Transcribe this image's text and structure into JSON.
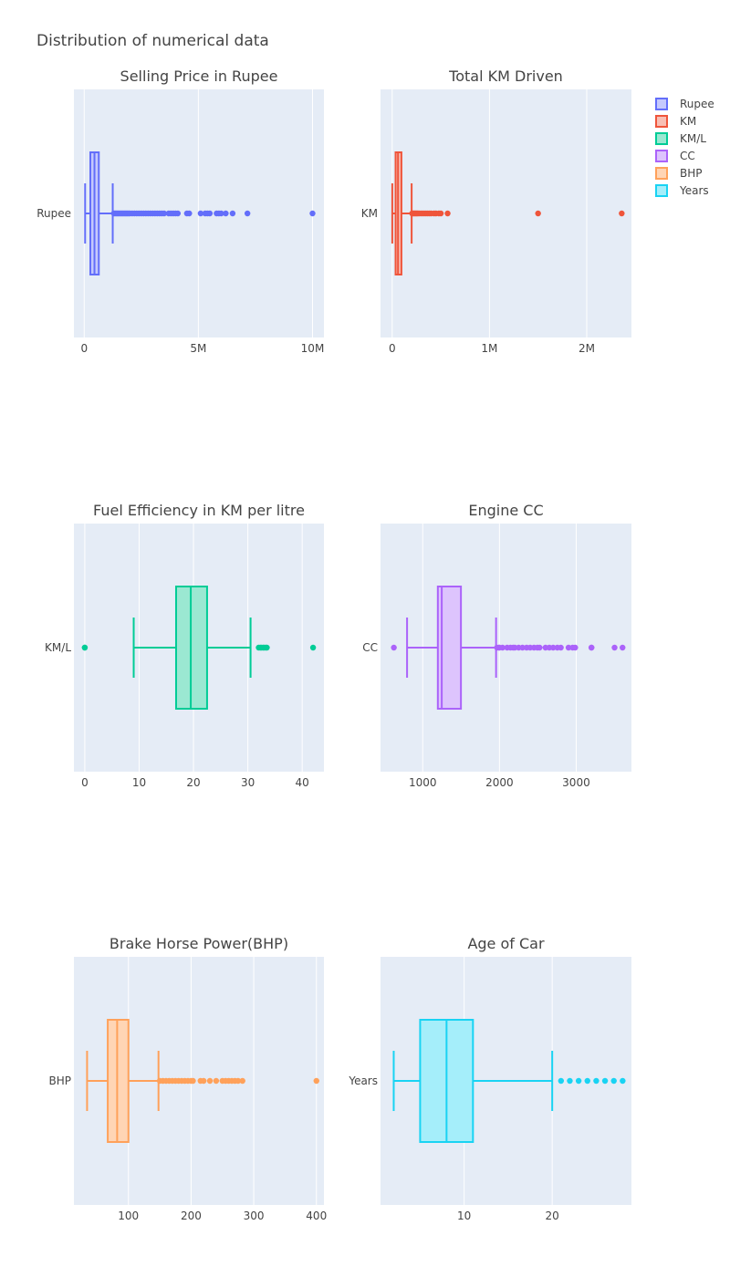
{
  "title": "Distribution of numerical data",
  "legend": [
    {
      "name": "Rupee",
      "color": "#636efa",
      "fill": "#c5c9fd"
    },
    {
      "name": "KM",
      "color": "#ef553b",
      "fill": "#f8bfb4"
    },
    {
      "name": "KM/L",
      "color": "#00cc96",
      "fill": "#9be8d2"
    },
    {
      "name": "CC",
      "color": "#ab63fa",
      "fill": "#ddc4fd"
    },
    {
      "name": "BHP",
      "color": "#ffa15a",
      "fill": "#ffd5b5"
    },
    {
      "name": "Years",
      "color": "#19d3f3",
      "fill": "#a5eefa"
    }
  ],
  "chart_data": [
    {
      "type": "box",
      "title": "Selling Price in Rupee",
      "category": "Rupee",
      "xrange": [
        -450000,
        10500000
      ],
      "ticks": [
        {
          "v": 0,
          "label": "0"
        },
        {
          "v": 5000000,
          "label": "5M"
        },
        {
          "v": 10000000,
          "label": "10M"
        }
      ],
      "color": "#636efa",
      "fill": "#c5c9fd",
      "box": {
        "min": 40000,
        "q1": 270000,
        "median": 450000,
        "q3": 640000,
        "upper_fence": 1250000
      },
      "outliers": [
        1300000,
        1350000,
        1400000,
        1450000,
        1500000,
        1550000,
        1600000,
        1650000,
        1700000,
        1750000,
        1800000,
        1850000,
        1900000,
        1950000,
        2000000,
        2100000,
        2200000,
        2300000,
        2400000,
        2500000,
        2600000,
        2700000,
        2800000,
        2900000,
        3000000,
        3100000,
        3200000,
        3300000,
        3400000,
        3500000,
        3700000,
        3800000,
        3900000,
        4000000,
        4100000,
        4500000,
        4600000,
        5100000,
        5300000,
        5400000,
        5500000,
        5800000,
        5900000,
        6000000,
        6200000,
        6500000,
        7150000,
        10000000
      ]
    },
    {
      "type": "box",
      "title": "Total KM Driven",
      "category": "KM",
      "xrange": [
        -120000,
        2460000
      ],
      "ticks": [
        {
          "v": 0,
          "label": "0"
        },
        {
          "v": 1000000,
          "label": "1M"
        },
        {
          "v": 2000000,
          "label": "2M"
        }
      ],
      "color": "#ef553b",
      "fill": "#f8bfb4",
      "box": {
        "min": 1000,
        "q1": 35000,
        "median": 60000,
        "q3": 95000,
        "upper_fence": 200000
      },
      "outliers": [
        205000,
        215000,
        225000,
        235000,
        245000,
        255000,
        265000,
        280000,
        300000,
        320000,
        340000,
        360000,
        380000,
        400000,
        430000,
        450000,
        480000,
        500000,
        570000,
        1500000,
        2360000
      ]
    },
    {
      "type": "box",
      "title": "Fuel Efficiency in KM per litre",
      "category": "KM/L",
      "xrange": [
        -2,
        44
      ],
      "ticks": [
        {
          "v": 0,
          "label": "0"
        },
        {
          "v": 10,
          "label": "10"
        },
        {
          "v": 20,
          "label": "20"
        },
        {
          "v": 30,
          "label": "30"
        },
        {
          "v": 40,
          "label": "40"
        }
      ],
      "color": "#00cc96",
      "fill": "#9be8d2",
      "box": {
        "min": 9,
        "q1": 16.8,
        "median": 19.5,
        "q3": 22.5,
        "upper_fence": 30.5
      },
      "outliers": [
        0,
        0,
        32,
        32.3,
        32.5,
        32.8,
        33,
        33.3,
        33.5,
        42
      ]
    },
    {
      "type": "box",
      "title": "Engine CC",
      "category": "CC",
      "xrange": [
        450,
        3720
      ],
      "ticks": [
        {
          "v": 1000,
          "label": "1000"
        },
        {
          "v": 2000,
          "label": "2000"
        },
        {
          "v": 3000,
          "label": "3000"
        }
      ],
      "color": "#ab63fa",
      "fill": "#ddc4fd",
      "box": {
        "min": 796,
        "q1": 1197,
        "median": 1248,
        "q3": 1498,
        "upper_fence": 1956
      },
      "outliers": [
        624,
        1968,
        1995,
        1998,
        2040,
        2100,
        2143,
        2179,
        2200,
        2250,
        2300,
        2354,
        2400,
        2450,
        2494,
        2523,
        2600,
        2650,
        2700,
        2755,
        2800,
        2900,
        2953,
        2987,
        3198,
        3200,
        3500,
        3604
      ]
    },
    {
      "type": "box",
      "title": "Brake Horse Power(BHP)",
      "category": "BHP",
      "xrange": [
        13,
        412
      ],
      "ticks": [
        {
          "v": 100,
          "label": "100"
        },
        {
          "v": 200,
          "label": "200"
        },
        {
          "v": 300,
          "label": "300"
        },
        {
          "v": 400,
          "label": "400"
        }
      ],
      "color": "#ffa15a",
      "fill": "#ffd5b5",
      "box": {
        "min": 34,
        "q1": 67,
        "median": 82,
        "q3": 100,
        "upper_fence": 148
      },
      "outliers": [
        150,
        155,
        160,
        165,
        170,
        175,
        180,
        185,
        190,
        195,
        200,
        203,
        215,
        220,
        230,
        240,
        250,
        255,
        260,
        265,
        270,
        275,
        282,
        400
      ]
    },
    {
      "type": "box",
      "title": "Age of Car",
      "category": "Years",
      "xrange": [
        0.5,
        29
      ],
      "ticks": [
        {
          "v": 10,
          "label": "10"
        },
        {
          "v": 20,
          "label": "20"
        }
      ],
      "color": "#19d3f3",
      "fill": "#a5eefa",
      "box": {
        "min": 2,
        "q1": 5,
        "median": 8,
        "q3": 11,
        "upper_fence": 20
      },
      "outliers": [
        21,
        22,
        23,
        24,
        25,
        26,
        27,
        28
      ]
    }
  ]
}
